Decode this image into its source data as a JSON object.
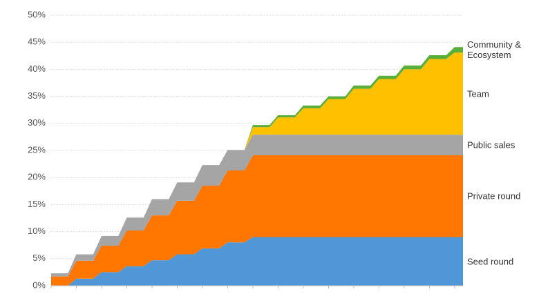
{
  "chart_data": {
    "type": "stacked_area",
    "categories": [
      null,
      null,
      null,
      null,
      null,
      null,
      null,
      null,
      null,
      null,
      null,
      null,
      null,
      null,
      null,
      null,
      null,
      null,
      null,
      null,
      null,
      null,
      null,
      null,
      null,
      null,
      null,
      null,
      null,
      null,
      null,
      null,
      null,
      null,
      null,
      null,
      null,
      null,
      null,
      null,
      null,
      null,
      null,
      null,
      null,
      null,
      null,
      null,
      null,
      null
    ],
    "series": [
      {
        "name": "Seed round",
        "color": "#4f97d6",
        "values": [
          0,
          0,
          0,
          1.3,
          1.3,
          1.3,
          2.5,
          2.5,
          2.5,
          3.6,
          3.6,
          3.6,
          4.7,
          4.7,
          4.7,
          5.8,
          5.8,
          5.8,
          6.9,
          6.9,
          6.9,
          8,
          8,
          8,
          9,
          9,
          9,
          9,
          9,
          9,
          9,
          9,
          9,
          9,
          9,
          9,
          9,
          9,
          9,
          9,
          9,
          9,
          9,
          9,
          9,
          9,
          9,
          9,
          9,
          9
        ]
      },
      {
        "name": "Private round",
        "color": "#ff7700",
        "values": [
          1.7,
          1.7,
          1.7,
          3.3,
          3.3,
          3.3,
          4.9,
          4.9,
          4.9,
          6.6,
          6.6,
          6.6,
          8.3,
          8.3,
          8.3,
          9.9,
          9.9,
          9.9,
          11.6,
          11.6,
          11.6,
          13.3,
          13.3,
          13.3,
          15.1,
          15.1,
          15.1,
          15.1,
          15.1,
          15.1,
          15.1,
          15.1,
          15.1,
          15.1,
          15.1,
          15.1,
          15.1,
          15.1,
          15.1,
          15.1,
          15.1,
          15.1,
          15.1,
          15.1,
          15.1,
          15.1,
          15.1,
          15.1,
          15.1,
          15.1
        ]
      },
      {
        "name": "Public sales",
        "color": "#a5a5a5",
        "values": [
          0.6,
          0.6,
          0.6,
          1.2,
          1.2,
          1.2,
          1.8,
          1.8,
          1.8,
          2.4,
          2.4,
          2.4,
          3,
          3,
          3,
          3.4,
          3.4,
          3.4,
          3.8,
          3.8,
          3.8,
          3.8,
          3.8,
          3.8,
          3.8,
          3.8,
          3.8,
          3.8,
          3.8,
          3.8,
          3.8,
          3.8,
          3.8,
          3.8,
          3.8,
          3.8,
          3.8,
          3.8,
          3.8,
          3.8,
          3.8,
          3.8,
          3.8,
          3.8,
          3.8,
          3.8,
          3.8,
          3.8,
          3.8,
          3.8
        ]
      },
      {
        "name": "Team",
        "color": "#ffc000",
        "values": [
          0,
          0,
          0,
          0,
          0,
          0,
          0,
          0,
          0,
          0,
          0,
          0,
          0,
          0,
          0,
          0,
          0,
          0,
          0,
          0,
          0,
          0,
          0,
          0,
          1.4,
          1.4,
          1.4,
          3.2,
          3.2,
          3.2,
          4.9,
          4.9,
          4.9,
          6.6,
          6.6,
          6.6,
          8.5,
          8.5,
          8.5,
          10.3,
          10.3,
          10.3,
          12.1,
          12.1,
          12.1,
          14,
          14,
          14,
          15.2,
          15.2
        ]
      },
      {
        "name": "Community & Ecosystem",
        "color": "#5aaf3a",
        "values": [
          0,
          0,
          0,
          0,
          0,
          0,
          0,
          0,
          0,
          0,
          0,
          0,
          0,
          0,
          0,
          0,
          0,
          0,
          0,
          0,
          0,
          0,
          0,
          0,
          0.4,
          0.4,
          0.4,
          0.4,
          0.4,
          0.4,
          0.5,
          0.5,
          0.5,
          0.5,
          0.5,
          0.5,
          0.6,
          0.6,
          0.6,
          0.6,
          0.6,
          0.6,
          0.7,
          0.7,
          0.7,
          0.7,
          0.7,
          0.7,
          1,
          1
        ]
      }
    ],
    "ylim": [
      0,
      50
    ],
    "yticks": [
      {
        "value": 0,
        "label": "0%"
      },
      {
        "value": 5,
        "label": "5%"
      },
      {
        "value": 10,
        "label": "10%"
      },
      {
        "value": 15,
        "label": "15%"
      },
      {
        "value": 20,
        "label": "20%"
      },
      {
        "value": 25,
        "label": "25%"
      },
      {
        "value": 30,
        "label": "30%"
      },
      {
        "value": 35,
        "label": "35%"
      },
      {
        "value": 40,
        "label": "40%"
      },
      {
        "value": 45,
        "label": "45%"
      },
      {
        "value": 50,
        "label": "50%"
      }
    ],
    "grid": true
  }
}
